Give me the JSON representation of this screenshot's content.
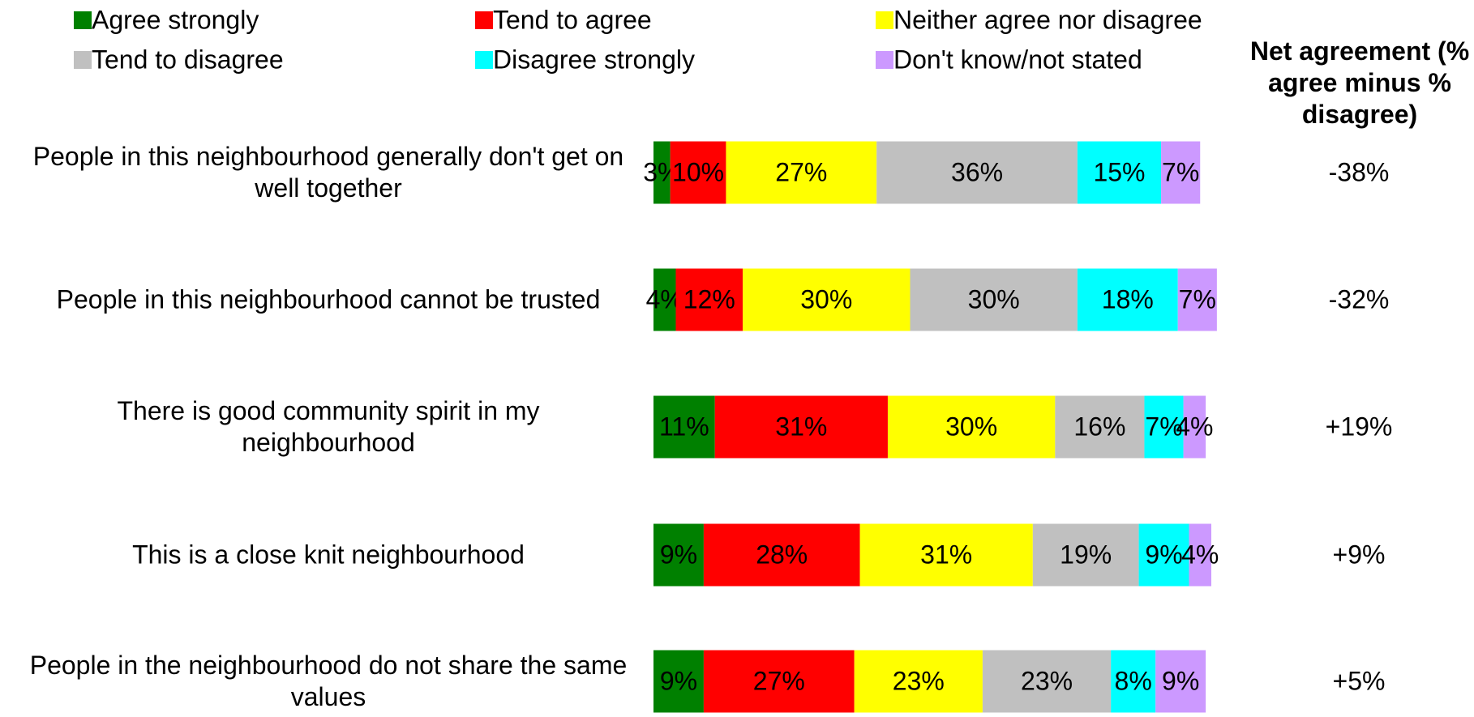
{
  "chart_data": {
    "type": "stacked-bar",
    "categories": [
      "People in this neighbourhood generally don't get on well together",
      "People in this neighbourhood cannot be trusted",
      "There is good community spirit in my neighbourhood",
      "This is a close knit neighbourhood",
      "People in the neighbourhood do not share the same values"
    ],
    "series": [
      {
        "name": "Agree strongly",
        "color": "#008000",
        "values": [
          3,
          4,
          11,
          9,
          9
        ],
        "value_labels": [
          "3%",
          "4%",
          "11%",
          "9%",
          "9%"
        ]
      },
      {
        "name": "Tend to agree",
        "color": "#ff0000",
        "values": [
          10,
          12,
          31,
          28,
          27
        ],
        "value_labels": [
          "10%",
          "12%",
          "31%",
          "28%",
          "27%"
        ]
      },
      {
        "name": "Neither agree nor disagree",
        "color": "#ffff00",
        "values": [
          27,
          30,
          30,
          31,
          23
        ],
        "value_labels": [
          "27%",
          "30%",
          "30%",
          "31%",
          "23%"
        ]
      },
      {
        "name": "Tend to disagree",
        "color": "#c0c0c0",
        "values": [
          36,
          30,
          16,
          19,
          23
        ],
        "value_labels": [
          "36%",
          "30%",
          "16%",
          "19%",
          "23%"
        ]
      },
      {
        "name": "Disagree strongly",
        "color": "#00ffff",
        "values": [
          15,
          18,
          7,
          9,
          8
        ],
        "value_labels": [
          "15%",
          "18%",
          "7%",
          "9%",
          "8%"
        ]
      },
      {
        "name": "Don't know/not stated",
        "color": "#cc99ff",
        "values": [
          7,
          7,
          4,
          4,
          9
        ],
        "value_labels": [
          "7%",
          "7%",
          "4%",
          "4%",
          "9%"
        ]
      }
    ],
    "net_title": "Net agreement (% agree minus % disagree)",
    "net_labels": [
      "-38%",
      "-32%",
      "+19%",
      "+9%",
      "+5%"
    ]
  }
}
